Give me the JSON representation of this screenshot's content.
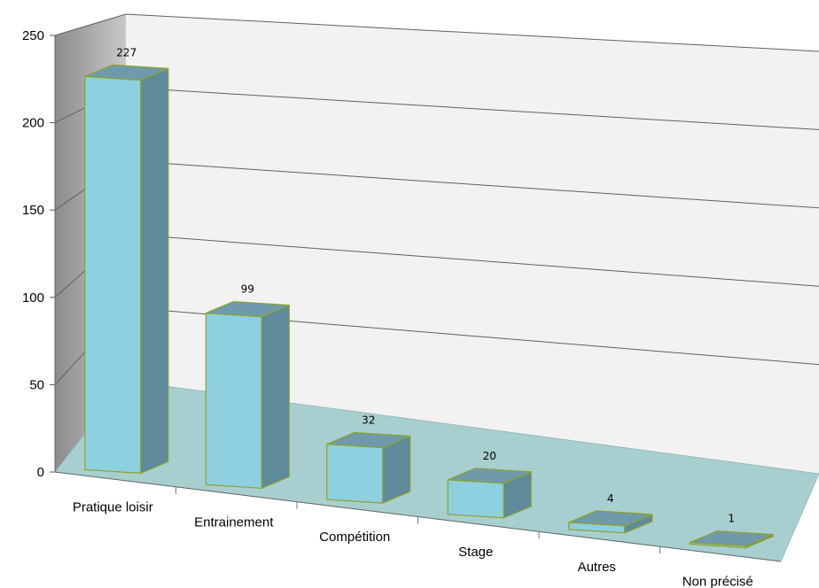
{
  "chart_data": {
    "type": "bar",
    "style": "3d-column",
    "categories": [
      "Pratique loisir",
      "Entrainement",
      "Compétition",
      "Stage",
      "Autres",
      "Non précisé"
    ],
    "values": [
      227,
      99,
      32,
      20,
      4,
      1
    ],
    "data_labels": [
      "227",
      "99",
      "32",
      "20",
      "4",
      "1"
    ],
    "y_ticks": [
      "0",
      "50",
      "100",
      "150",
      "200",
      "250"
    ],
    "ylim": [
      0,
      250
    ],
    "grid": true,
    "legend": "none",
    "colors": {
      "bar_front": "#8ECFE0",
      "bar_side": "#5E8A9C",
      "bar_top": "#6E9AAC",
      "bar_edge": "#8FA32A",
      "floor": "#A8CFD0",
      "back_wall": "#F2F2F2",
      "side_wall": "#9A9A9A",
      "gridline": "#606060"
    }
  }
}
